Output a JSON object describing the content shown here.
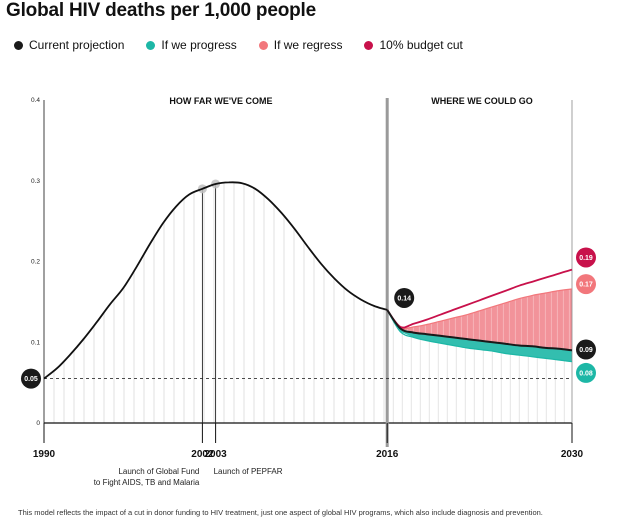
{
  "title": "Global HIV deaths per 1,000 people",
  "legend": [
    {
      "label": "Current projection",
      "color": "#1a1a1a"
    },
    {
      "label": "If we progress",
      "color": "#1db7a6"
    },
    {
      "label": "If we regress",
      "color": "#f2777c"
    },
    {
      "label": "10% budget cut",
      "color": "#c8114b"
    }
  ],
  "footnote": "This model reflects the impact of a cut in donor funding to HIV treatment, just one aspect of global HIV programs, which also include diagnosis and prevention.",
  "chart_data": {
    "type": "line",
    "title": "Global HIV deaths per 1,000 people",
    "xlabel": "",
    "ylabel": "",
    "xlim": [
      1990,
      2030
    ],
    "ylim": [
      0,
      0.4
    ],
    "y_ticks": [
      "0",
      "0.1",
      "0.2",
      "0.3",
      "0.4"
    ],
    "x_ticks": [
      "1990",
      "2002",
      "2003",
      "2016",
      "2030"
    ],
    "grid": false,
    "legend_position": "top",
    "section_labels": [
      {
        "text": "HOW FAR WE'VE COME"
      },
      {
        "text": "WHERE WE COULD GO"
      }
    ],
    "annotations": [
      {
        "x": 2002,
        "text_lines": [
          "Launch of Global Fund",
          "to Fight AIDS, TB and Malaria"
        ]
      },
      {
        "x": 2003,
        "text_lines": [
          "Launch of PEPFAR"
        ]
      }
    ],
    "value_labels": [
      {
        "x": 1990,
        "y": 0.055,
        "text": "0.05",
        "color": "#1a1a1a"
      },
      {
        "x": 2016,
        "y": 0.14,
        "text": "0.14",
        "color": "#1a1a1a"
      },
      {
        "x": 2030,
        "y": 0.19,
        "text": "0.19",
        "color": "#c8114b"
      },
      {
        "x": 2030,
        "y": 0.17,
        "text": "0.17",
        "color": "#f2777c"
      },
      {
        "x": 2030,
        "y": 0.09,
        "text": "0.09",
        "color": "#1a1a1a"
      },
      {
        "x": 2030,
        "y": 0.08,
        "text": "0.08",
        "color": "#1db7a6"
      }
    ],
    "history": {
      "x": [
        1990,
        1991,
        1992,
        1993,
        1994,
        1995,
        1996,
        1997,
        1998,
        1999,
        2000,
        2001,
        2002,
        2003,
        2004,
        2005,
        2006,
        2007,
        2008,
        2009,
        2010,
        2011,
        2012,
        2013,
        2014,
        2015,
        2016
      ],
      "y": [
        0.055,
        0.068,
        0.085,
        0.104,
        0.125,
        0.147,
        0.167,
        0.193,
        0.221,
        0.247,
        0.268,
        0.283,
        0.29,
        0.296,
        0.298,
        0.297,
        0.29,
        0.277,
        0.26,
        0.24,
        0.218,
        0.197,
        0.179,
        0.164,
        0.153,
        0.145,
        0.14
      ]
    },
    "series": [
      {
        "name": "Current projection",
        "color": "#1a1a1a",
        "x": [
          2016,
          2017,
          2018,
          2019,
          2020,
          2021,
          2022,
          2023,
          2024,
          2025,
          2026,
          2027,
          2028,
          2029,
          2030
        ],
        "y": [
          0.14,
          0.117,
          0.112,
          0.11,
          0.108,
          0.106,
          0.104,
          0.102,
          0.1,
          0.098,
          0.096,
          0.095,
          0.093,
          0.092,
          0.09
        ]
      },
      {
        "name": "If we progress",
        "color": "#1db7a6",
        "x": [
          2016,
          2017,
          2018,
          2019,
          2020,
          2021,
          2022,
          2023,
          2024,
          2025,
          2026,
          2027,
          2028,
          2029,
          2030
        ],
        "y": [
          0.14,
          0.113,
          0.106,
          0.102,
          0.099,
          0.096,
          0.093,
          0.091,
          0.089,
          0.086,
          0.084,
          0.082,
          0.08,
          0.078,
          0.076
        ]
      },
      {
        "name": "If we regress",
        "color": "#f2777c",
        "x": [
          2016,
          2017,
          2018,
          2019,
          2020,
          2021,
          2022,
          2023,
          2024,
          2025,
          2026,
          2027,
          2028,
          2029,
          2030
        ],
        "y": [
          0.14,
          0.118,
          0.119,
          0.122,
          0.126,
          0.13,
          0.134,
          0.139,
          0.144,
          0.149,
          0.154,
          0.158,
          0.161,
          0.164,
          0.166
        ]
      },
      {
        "name": "10% budget cut",
        "color": "#c8114b",
        "x": [
          2016,
          2017,
          2018,
          2019,
          2020,
          2021,
          2022,
          2023,
          2024,
          2025,
          2026,
          2027,
          2028,
          2029,
          2030
        ],
        "y": [
          0.14,
          0.119,
          0.123,
          0.128,
          0.134,
          0.14,
          0.146,
          0.152,
          0.158,
          0.164,
          0.17,
          0.175,
          0.18,
          0.185,
          0.19
        ]
      }
    ]
  }
}
